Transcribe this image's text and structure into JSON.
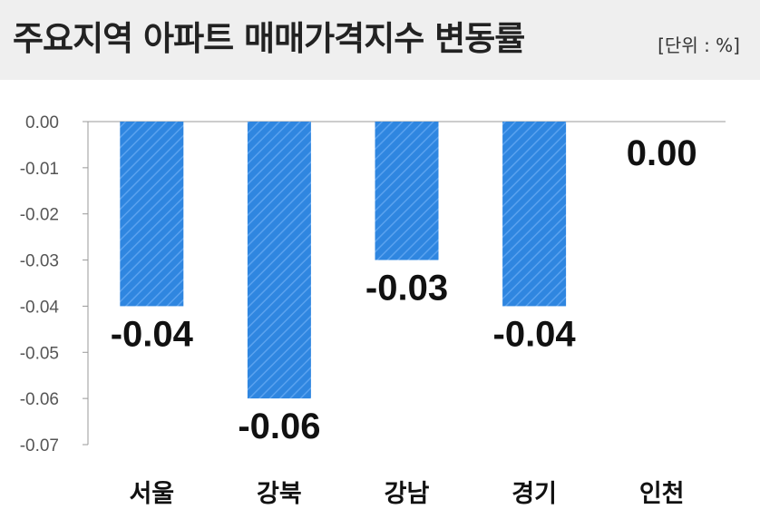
{
  "header": {
    "title": "주요지역 아파트 매매가격지수 변동률",
    "unit": "[단위 : %]"
  },
  "colors": {
    "bar": "#2f86e0",
    "bar_hatch": "#5aa2ef",
    "header_bg": "#efefef",
    "axis": "#999999"
  },
  "chart_data": {
    "type": "bar",
    "title": "주요지역 아파트 매매가격지수 변동률",
    "unit": "[단위 : %]",
    "categories": [
      "서울",
      "강북",
      "강남",
      "경기",
      "인천"
    ],
    "values": [
      -0.04,
      -0.06,
      -0.03,
      -0.04,
      0.0
    ],
    "data_labels": [
      "-0.04",
      "-0.06",
      "-0.03",
      "-0.04",
      "0.00"
    ],
    "ylim": [
      -0.07,
      0.0
    ],
    "yticks": [
      "0.00",
      "-0.01",
      "-0.02",
      "-0.03",
      "-0.04",
      "-0.05",
      "-0.06",
      "-0.07"
    ],
    "grid": false,
    "legend": "none"
  }
}
